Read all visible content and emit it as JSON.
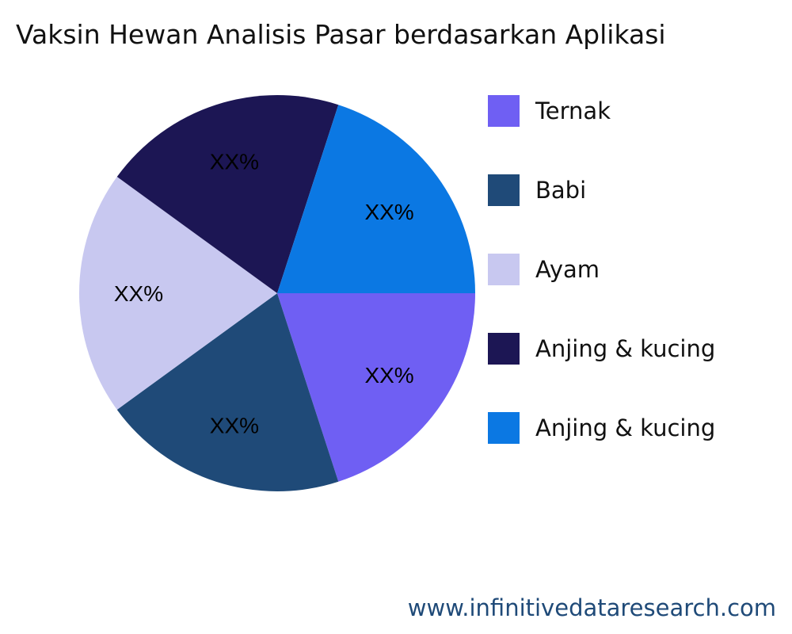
{
  "chart_data": {
    "type": "pie",
    "title": "Vaksin Hewan Analisis Pasar berdasarkan Aplikasi",
    "legend_position": "right",
    "slices": [
      {
        "name": "Ternak",
        "value": 20,
        "label": "XX%",
        "color": "#6f5ff3"
      },
      {
        "name": "Babi",
        "value": 20,
        "label": "XX%",
        "color": "#1f4a78"
      },
      {
        "name": "Ayam",
        "value": 20,
        "label": "XX%",
        "color": "#c8c8f0"
      },
      {
        "name": "Anjing & kucing",
        "value": 20,
        "label": "XX%",
        "color": "#1c1654"
      },
      {
        "name": "Anjing & kucing",
        "value": 20,
        "label": "XX%",
        "color": "#0b78e3"
      }
    ]
  },
  "footer": {
    "website": "www.infinitivedataresearch.com"
  }
}
